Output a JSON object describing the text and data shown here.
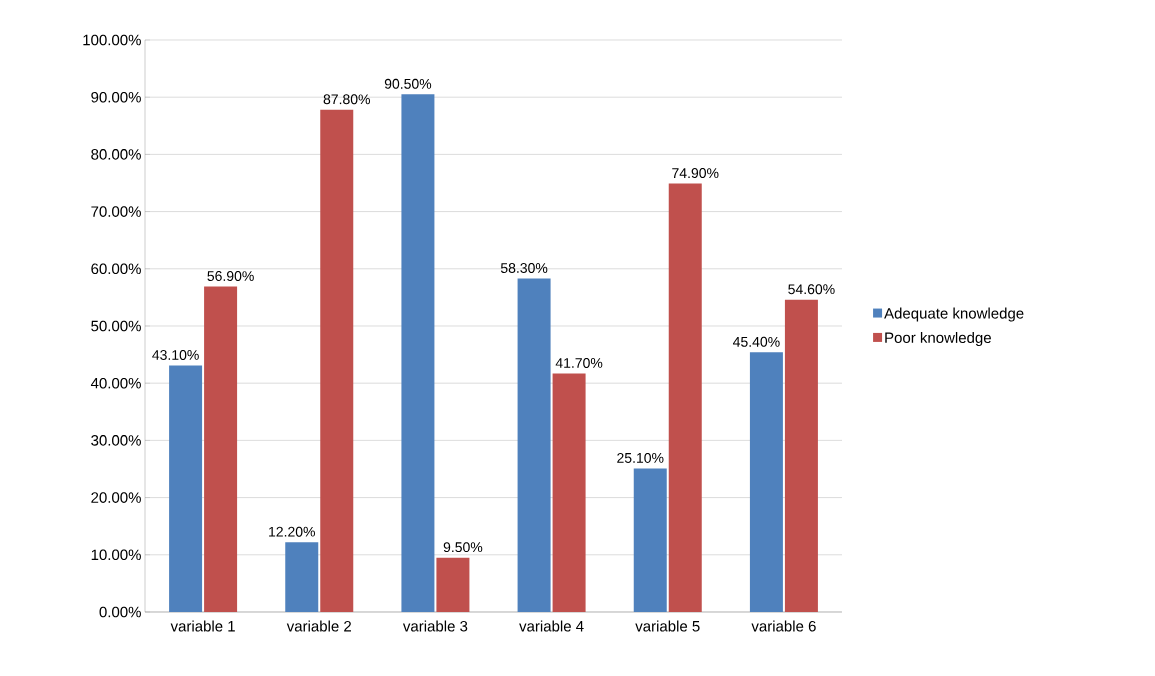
{
  "chart_data": {
    "type": "bar",
    "categories": [
      "variable 1",
      "variable 2",
      "variable 3",
      "variable 4",
      "variable 5",
      "variable 6"
    ],
    "series": [
      {
        "name": "Adequate knowledge",
        "color": "#4f81bd",
        "values": [
          43.1,
          12.2,
          90.5,
          58.3,
          25.1,
          45.4
        ],
        "value_labels": [
          "43.10%",
          "12.20%",
          "90.50%",
          "58.30%",
          "25.10%",
          "45.40%"
        ]
      },
      {
        "name": "Poor knowledge",
        "color": "#c0504d",
        "values": [
          56.9,
          87.8,
          9.5,
          41.7,
          74.9,
          54.6
        ],
        "value_labels": [
          "56.90%",
          "87.80%",
          "9.50%",
          "41.70%",
          "74.90%",
          "54.60%"
        ]
      }
    ],
    "ylim": [
      0,
      100
    ],
    "yticks": [
      {
        "value": 0,
        "label": "0.00%"
      },
      {
        "value": 10,
        "label": "10.00%"
      },
      {
        "value": 20,
        "label": "20.00%"
      },
      {
        "value": 30,
        "label": "30.00%"
      },
      {
        "value": 40,
        "label": "40.00%"
      },
      {
        "value": 50,
        "label": "50.00%"
      },
      {
        "value": 60,
        "label": "60.00%"
      },
      {
        "value": 70,
        "label": "70.00%"
      },
      {
        "value": 80,
        "label": "80.00%"
      },
      {
        "value": 90,
        "label": "90.00%"
      },
      {
        "value": 100,
        "label": "100.00%"
      }
    ],
    "grid": "y",
    "legend": "right"
  }
}
